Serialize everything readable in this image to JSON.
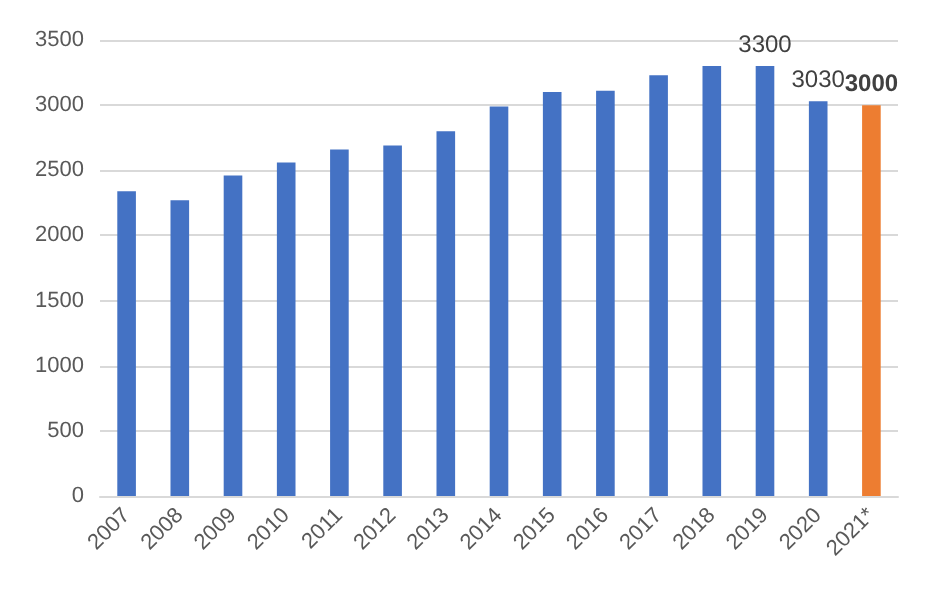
{
  "chart_data": {
    "type": "bar",
    "categories": [
      "2007",
      "2008",
      "2009",
      "2010",
      "2011",
      "2012",
      "2013",
      "2014",
      "2015",
      "2016",
      "2017",
      "2018",
      "2019",
      "2020",
      "2021*"
    ],
    "values": [
      2340,
      2270,
      2460,
      2560,
      2660,
      2690,
      2800,
      2990,
      3100,
      3110,
      3230,
      3300,
      3300,
      3030,
      3000
    ],
    "colors": [
      "#4472c4",
      "#4472c4",
      "#4472c4",
      "#4472c4",
      "#4472c4",
      "#4472c4",
      "#4472c4",
      "#4472c4",
      "#4472c4",
      "#4472c4",
      "#4472c4",
      "#4472c4",
      "#4472c4",
      "#4472c4",
      "#ed7d31"
    ],
    "value_labels": [
      null,
      null,
      null,
      null,
      null,
      null,
      null,
      null,
      null,
      null,
      null,
      null,
      "3300",
      "3030",
      "3000"
    ],
    "ylim": [
      0,
      3500
    ],
    "yticks": [
      0,
      500,
      1000,
      1500,
      2000,
      2500,
      3000,
      3500
    ],
    "grid": "y"
  }
}
